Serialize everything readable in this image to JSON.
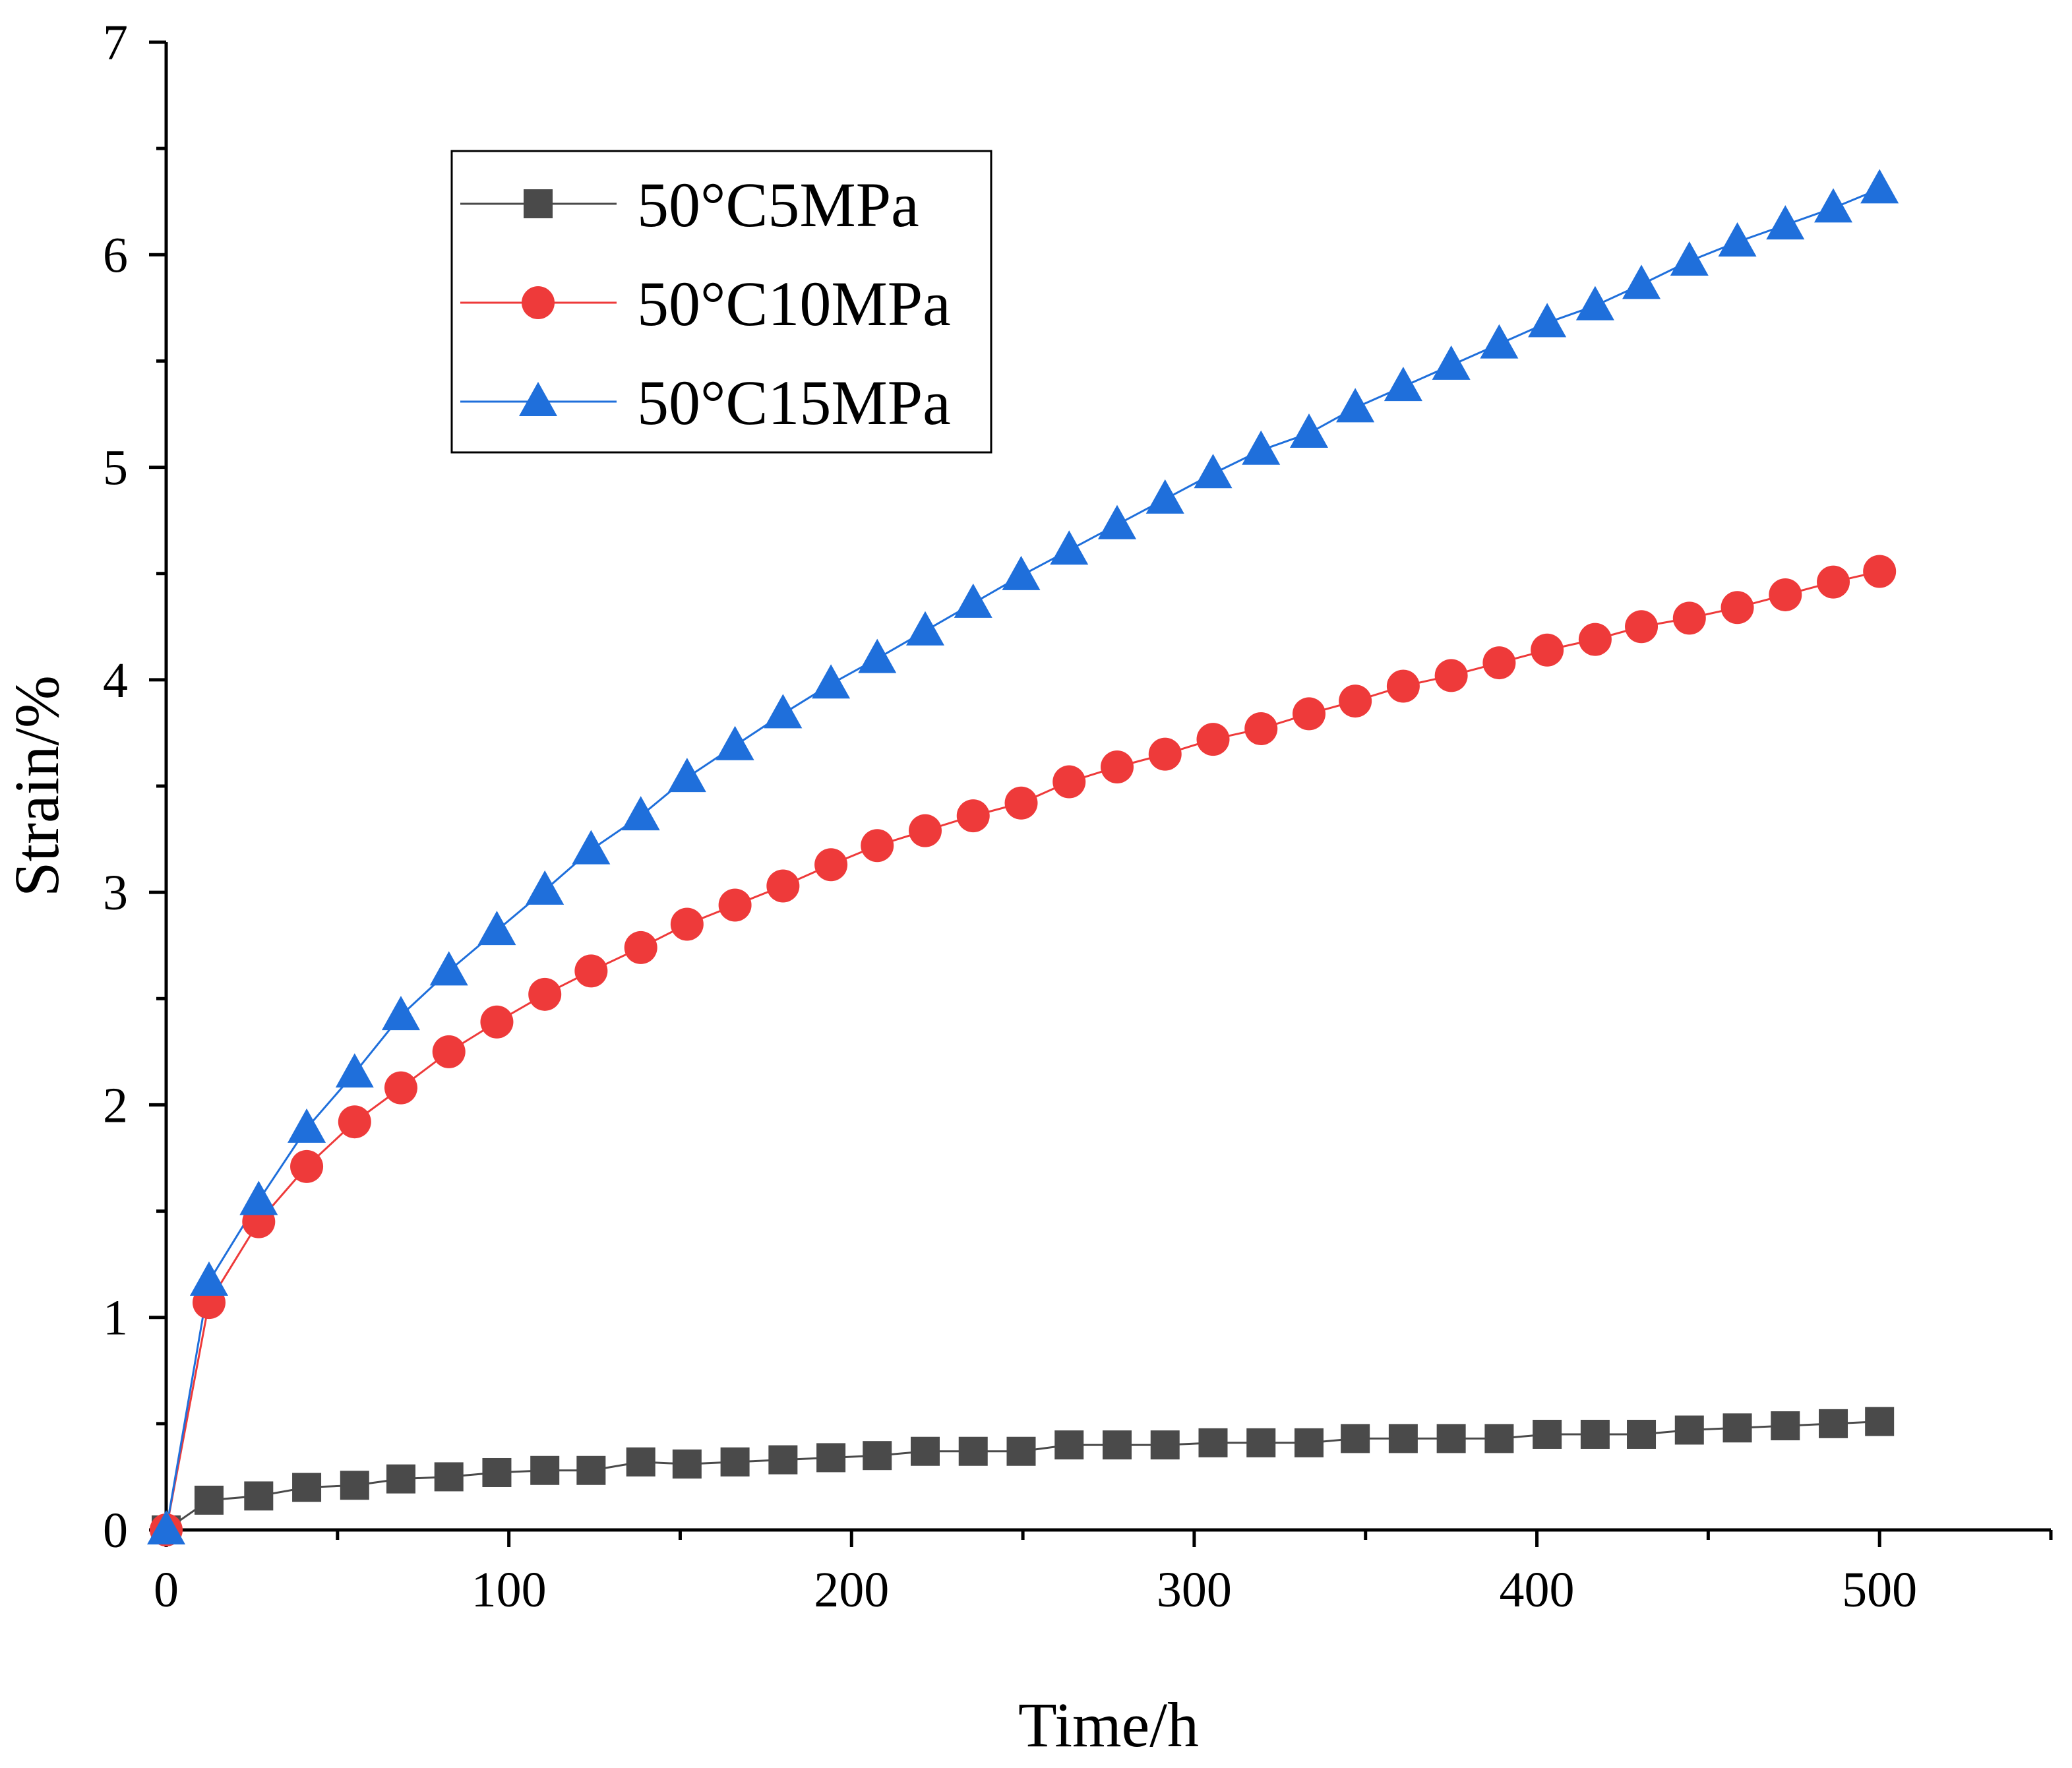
{
  "chart_data": {
    "type": "line",
    "title": "",
    "xlabel": "Time/h",
    "ylabel": "Strain/%",
    "xlim": [
      0,
      550
    ],
    "ylim": [
      0,
      7
    ],
    "xticks": [
      0,
      100,
      200,
      300,
      400,
      500
    ],
    "xtick_labels": [
      "0",
      "100",
      "200",
      "300",
      "400",
      "500"
    ],
    "yticks": [
      0,
      1,
      2,
      3,
      4,
      5,
      6,
      7
    ],
    "ytick_labels": [
      "0",
      "1",
      "2",
      "3",
      "4",
      "5",
      "6",
      "7"
    ],
    "grid": false,
    "legend_position": "top-left",
    "x": [
      0,
      12.5,
      27,
      41,
      55,
      68.5,
      82.5,
      96.5,
      110.5,
      124,
      138.5,
      152,
      166,
      180,
      194,
      207.5,
      221.5,
      235.5,
      249.5,
      263.5,
      277.5,
      291.5,
      305.5,
      319.5,
      333.5,
      347,
      361,
      375,
      389,
      403,
      417,
      430.5,
      444.5,
      458.5,
      472.5,
      486.5,
      500
    ],
    "series": [
      {
        "name": "50°C5MPa",
        "color": "#4a4a4a",
        "marker": "square",
        "values": [
          0,
          0.14,
          0.16,
          0.2,
          0.21,
          0.24,
          0.25,
          0.27,
          0.28,
          0.28,
          0.32,
          0.31,
          0.32,
          0.33,
          0.34,
          0.35,
          0.37,
          0.37,
          0.37,
          0.4,
          0.4,
          0.4,
          0.41,
          0.41,
          0.41,
          0.43,
          0.43,
          0.43,
          0.43,
          0.45,
          0.45,
          0.45,
          0.47,
          0.48,
          0.49,
          0.5,
          0.51
        ]
      },
      {
        "name": "50°C10MPa",
        "color": "#ee3a3a",
        "marker": "circle",
        "values": [
          0,
          1.07,
          1.45,
          1.71,
          1.92,
          2.08,
          2.25,
          2.39,
          2.52,
          2.63,
          2.74,
          2.85,
          2.94,
          3.03,
          3.13,
          3.22,
          3.29,
          3.36,
          3.42,
          3.52,
          3.59,
          3.65,
          3.72,
          3.77,
          3.84,
          3.9,
          3.97,
          4.02,
          4.08,
          4.14,
          4.19,
          4.25,
          4.29,
          4.34,
          4.4,
          4.46,
          4.51
        ]
      },
      {
        "name": "50°C15MPa",
        "color": "#1f6fdb",
        "marker": "triangle",
        "values": [
          0,
          1.17,
          1.55,
          1.89,
          2.15,
          2.42,
          2.63,
          2.82,
          3.01,
          3.2,
          3.36,
          3.54,
          3.69,
          3.84,
          3.98,
          4.1,
          4.23,
          4.36,
          4.49,
          4.61,
          4.73,
          4.85,
          4.97,
          5.08,
          5.16,
          5.28,
          5.38,
          5.48,
          5.58,
          5.68,
          5.76,
          5.86,
          5.97,
          6.06,
          6.14,
          6.22,
          6.31
        ]
      }
    ]
  }
}
